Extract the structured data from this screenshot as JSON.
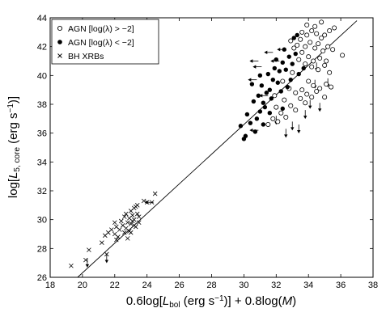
{
  "chart_data": {
    "type": "scatter",
    "xlabel_parts": {
      "pre": "0.6log[",
      "L": "L",
      "sub": "bol",
      "mid": " (erg s",
      "sup": "−1",
      "post": ")] + 0.8log(",
      "M": "M",
      "end": ")"
    },
    "ylabel_parts": {
      "pre": "log[",
      "L": "L",
      "sub": "5, core",
      "mid": " (erg s",
      "sup": "−1",
      "post": ")]"
    },
    "xlim": [
      18,
      38
    ],
    "ylim": [
      26,
      44
    ],
    "x_ticks": [
      18,
      20,
      22,
      24,
      26,
      28,
      30,
      32,
      34,
      36,
      38
    ],
    "y_ticks": [
      26,
      28,
      30,
      32,
      34,
      36,
      38,
      40,
      42,
      44
    ],
    "legend_position": "top-left",
    "fit_line": {
      "x": [
        19.7,
        37.0
      ],
      "y": [
        26.0,
        43.8
      ]
    },
    "series": [
      {
        "name": "AGN [log(λ) > −2]",
        "marker": "open-circle",
        "points": [
          [
            33.6,
            43.0
          ],
          [
            33.9,
            42.8
          ],
          [
            34.2,
            43.1
          ],
          [
            34.5,
            42.9
          ],
          [
            34.8,
            42.6
          ],
          [
            33.5,
            42.5
          ],
          [
            34.1,
            42.3
          ],
          [
            34.6,
            42.2
          ],
          [
            35.0,
            42.8
          ],
          [
            35.3,
            43.1
          ],
          [
            35.6,
            43.3
          ],
          [
            33.8,
            42.0
          ],
          [
            34.4,
            41.9
          ],
          [
            34.9,
            41.7
          ],
          [
            35.2,
            42.0
          ],
          [
            35.5,
            41.8
          ],
          [
            36.1,
            41.4
          ],
          [
            33.6,
            41.6
          ],
          [
            34.0,
            41.3
          ],
          [
            34.3,
            41.0
          ],
          [
            34.7,
            41.2
          ],
          [
            35.1,
            41.0
          ],
          [
            33.4,
            41.1
          ],
          [
            33.8,
            40.8
          ],
          [
            34.2,
            40.6
          ],
          [
            34.6,
            40.4
          ],
          [
            35.0,
            40.7
          ],
          [
            33.3,
            42.1
          ],
          [
            33.9,
            43.5
          ],
          [
            34.4,
            43.4
          ],
          [
            32.9,
            42.4
          ],
          [
            33.1,
            41.9
          ],
          [
            34.0,
            39.6
          ],
          [
            34.3,
            39.3
          ],
          [
            34.7,
            39.1
          ],
          [
            35.1,
            39.4
          ],
          [
            33.6,
            39.0
          ],
          [
            33.9,
            38.7
          ],
          [
            34.2,
            38.5
          ],
          [
            32.8,
            39.1
          ],
          [
            33.2,
            38.8
          ],
          [
            33.5,
            38.4
          ],
          [
            32.5,
            38.3
          ],
          [
            32.9,
            37.9
          ],
          [
            33.2,
            37.6
          ],
          [
            32.0,
            37.8
          ],
          [
            32.3,
            37.4
          ],
          [
            32.6,
            37.1
          ],
          [
            31.8,
            37.0
          ],
          [
            32.1,
            36.8
          ],
          [
            33.8,
            38.1
          ],
          [
            34.5,
            38.9
          ],
          [
            35.0,
            38.5
          ],
          [
            35.4,
            39.2
          ],
          [
            31.5,
            36.6
          ],
          [
            32.4,
            39.6
          ],
          [
            31.9,
            38.6
          ],
          [
            33.0,
            40.2
          ],
          [
            35.3,
            40.2
          ],
          [
            34.8,
            43.7
          ]
        ]
      },
      {
        "name": "AGN [log(λ) < −2]",
        "marker": "filled-circle",
        "points": [
          [
            29.8,
            36.5
          ],
          [
            30.1,
            35.8
          ],
          [
            30.0,
            35.6
          ],
          [
            30.4,
            36.7
          ],
          [
            30.8,
            37.0
          ],
          [
            31.0,
            37.5
          ],
          [
            30.6,
            38.2
          ],
          [
            30.9,
            38.6
          ],
          [
            31.2,
            38.1
          ],
          [
            31.4,
            38.8
          ],
          [
            31.1,
            39.3
          ],
          [
            31.6,
            39.0
          ],
          [
            31.7,
            38.4
          ],
          [
            31.3,
            37.8
          ],
          [
            31.8,
            39.7
          ],
          [
            31.5,
            40.1
          ],
          [
            31.9,
            40.5
          ],
          [
            32.2,
            40.3
          ],
          [
            32.1,
            39.5
          ],
          [
            32.4,
            40.9
          ],
          [
            32.6,
            40.4
          ],
          [
            32.0,
            41.1
          ],
          [
            32.8,
            41.3
          ],
          [
            32.5,
            41.8
          ],
          [
            33.0,
            40.8
          ],
          [
            33.2,
            41.5
          ],
          [
            32.3,
            38.9
          ],
          [
            32.7,
            39.2
          ],
          [
            31.0,
            40.0
          ],
          [
            30.5,
            39.4
          ],
          [
            30.2,
            37.3
          ],
          [
            33.4,
            40.1
          ],
          [
            33.7,
            40.5
          ],
          [
            33.1,
            42.6
          ],
          [
            33.3,
            42.8
          ],
          [
            31.2,
            36.6
          ],
          [
            32.9,
            39.7
          ],
          [
            30.7,
            36.1
          ],
          [
            31.6,
            37.4
          ],
          [
            32.4,
            37.7
          ]
        ]
      },
      {
        "name": "BH XRBs",
        "marker": "cross",
        "points": [
          [
            19.3,
            26.8
          ],
          [
            20.2,
            27.2
          ],
          [
            20.4,
            27.9
          ],
          [
            21.2,
            28.4
          ],
          [
            21.5,
            27.6
          ],
          [
            21.4,
            28.9
          ],
          [
            21.6,
            29.1
          ],
          [
            21.8,
            29.3
          ],
          [
            22.0,
            29.0
          ],
          [
            22.1,
            29.5
          ],
          [
            22.3,
            29.3
          ],
          [
            22.2,
            28.8
          ],
          [
            22.5,
            29.6
          ],
          [
            22.6,
            29.1
          ],
          [
            22.8,
            29.8
          ],
          [
            22.7,
            29.4
          ],
          [
            22.9,
            30.1
          ],
          [
            23.0,
            29.7
          ],
          [
            23.1,
            30.3
          ],
          [
            23.2,
            30.0
          ],
          [
            23.3,
            29.5
          ],
          [
            23.0,
            30.6
          ],
          [
            23.2,
            30.8
          ],
          [
            23.4,
            30.4
          ],
          [
            23.1,
            29.9
          ],
          [
            22.9,
            29.2
          ],
          [
            23.3,
            30.9
          ],
          [
            23.5,
            29.8
          ],
          [
            22.4,
            29.9
          ],
          [
            22.6,
            30.2
          ],
          [
            23.0,
            29.1
          ],
          [
            23.4,
            31.0
          ],
          [
            24.0,
            31.2
          ],
          [
            24.3,
            31.2
          ],
          [
            24.5,
            31.8
          ],
          [
            23.8,
            31.3
          ],
          [
            22.8,
            28.7
          ],
          [
            22.0,
            29.8
          ],
          [
            23.5,
            30.2
          ],
          [
            22.1,
            28.6
          ],
          [
            22.7,
            30.4
          ],
          [
            23.2,
            29.6
          ]
        ]
      }
    ],
    "upper_limits": [
      [
        34.4,
        39.7
      ],
      [
        35.2,
        39.8
      ],
      [
        34.1,
        38.3
      ],
      [
        33.8,
        37.6
      ],
      [
        33.4,
        36.6
      ],
      [
        32.6,
        36.3
      ],
      [
        33.0,
        36.8
      ],
      [
        34.7,
        38.1
      ],
      [
        32.0,
        37.2
      ],
      [
        34.5,
        40.9
      ]
    ],
    "left_arrow_limits": [
      [
        31.8,
        41.6
      ],
      [
        32.2,
        41.0
      ],
      [
        31.1,
        40.6
      ],
      [
        30.8,
        39.7
      ],
      [
        31.5,
        38.6
      ],
      [
        30.9,
        36.2
      ],
      [
        30.9,
        41.0
      ],
      [
        32.6,
        41.8
      ]
    ],
    "xrb_upper_limits": [
      [
        21.5,
        27.6
      ],
      [
        20.3,
        27.3
      ]
    ],
    "xrb_left_limits": [
      [
        24.4,
        31.2
      ]
    ]
  }
}
